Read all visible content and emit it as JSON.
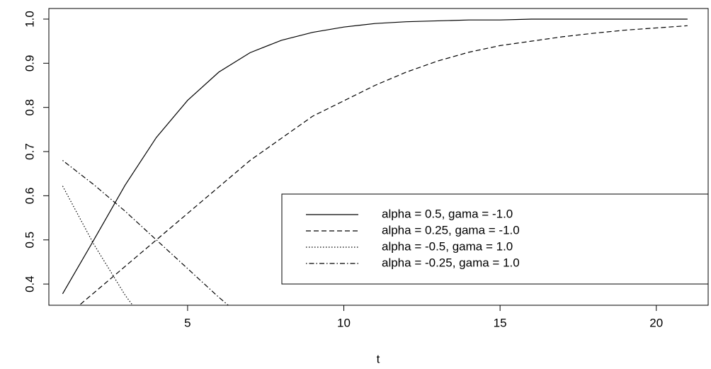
{
  "chart_data": {
    "type": "line",
    "x_label": "t",
    "x": [
      1,
      2,
      3,
      4,
      5,
      6,
      7,
      8,
      9,
      10,
      11,
      12,
      13,
      14,
      15,
      16,
      17,
      18,
      19,
      20,
      21
    ],
    "series": [
      {
        "name": "alpha = 0.5, gama = -1.0",
        "color": "#000000",
        "linestyle": "solid",
        "values": [
          0.378,
          0.5,
          0.624,
          0.732,
          0.816,
          0.88,
          0.924,
          0.952,
          0.97,
          0.982,
          0.99,
          0.994,
          0.996,
          0.998,
          0.998,
          1.0,
          1.0,
          1.0,
          1.0,
          1.0,
          1.0
        ]
      },
      {
        "name": "alpha = 0.25, gama = -1.0",
        "color": "#000000",
        "linestyle": "dashed",
        "values": [
          0.32,
          0.38,
          0.44,
          0.5,
          0.56,
          0.62,
          0.68,
          0.73,
          0.78,
          0.815,
          0.85,
          0.88,
          0.905,
          0.925,
          0.94,
          0.95,
          0.96,
          0.968,
          0.975,
          0.98,
          0.985
        ]
      },
      {
        "name": "alpha = -0.5, gama = 1.0",
        "color": "#000000",
        "linestyle": "dotted",
        "values": [
          0.622,
          0.49,
          0.375,
          0.28,
          null,
          null,
          null,
          null,
          null,
          null,
          null,
          null,
          null,
          null,
          null,
          null,
          null,
          null,
          null,
          null,
          null
        ]
      },
      {
        "name": "alpha = -0.25, gama = 1.0",
        "color": "#000000",
        "linestyle": "dotdash",
        "values": [
          0.68,
          0.625,
          0.565,
          0.5,
          0.435,
          0.37,
          0.31,
          null,
          null,
          null,
          null,
          null,
          null,
          null,
          null,
          null,
          null,
          null,
          null,
          null,
          null
        ]
      }
    ],
    "xlim": [
      0.56,
      21.66
    ],
    "xticks": [
      5,
      10,
      15,
      20
    ],
    "ylim": [
      0.352,
      1.024
    ],
    "yticks": [
      {
        "value": 0.4,
        "label": "0.4"
      },
      {
        "value": 0.5,
        "label": "0.5"
      },
      {
        "value": 0.6,
        "label": "0.6"
      },
      {
        "value": 0.7,
        "label": "0.7"
      },
      {
        "value": 0.8,
        "label": "0.8"
      },
      {
        "value": 0.9,
        "label": "0.9"
      },
      {
        "value": 1.0,
        "label": "1.0"
      }
    ],
    "legend": "bottom-right",
    "grid": false
  }
}
